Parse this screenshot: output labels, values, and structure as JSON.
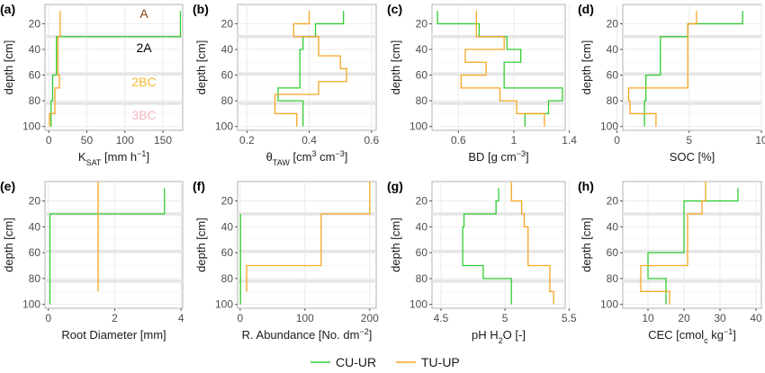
{
  "colors": {
    "cu_ur": "#33cc33",
    "tu_up": "#f5a623",
    "grid": "#ebebeb",
    "band": "#e6e6e6"
  },
  "legend": {
    "series1": "CU-UR",
    "series2": "TU-UP"
  },
  "horizons": {
    "labels": [
      "A",
      "2A",
      "2BC",
      "3BC"
    ],
    "colors": [
      "#8b4513",
      "#000000",
      "#f5b82e",
      "#f4b6c2"
    ]
  },
  "ylabel": "depth [cm]",
  "chart_data": [
    {
      "type": "line",
      "panel": "(a)",
      "xlabel": "K",
      "xlabel_sub": "SAT",
      "xlabel_post": " [mm h",
      "xlabel_sup": "−1",
      "xlabel_end": "]",
      "xlim": [
        -5,
        176
      ],
      "xticks": [
        0,
        50,
        100,
        150
      ],
      "xtick_labels": [
        "0",
        "50",
        "100",
        "150"
      ],
      "ylim": [
        5,
        103
      ],
      "yticks": [
        20,
        40,
        60,
        80,
        100
      ],
      "series": [
        {
          "name": "CU-UR",
          "steps": [
            [
              10,
              30,
              173
            ],
            [
              30,
              60,
              10
            ],
            [
              60,
              80,
              5
            ],
            [
              80,
              100,
              3
            ]
          ]
        },
        {
          "name": "TU-UP",
          "steps": [
            [
              10,
              30,
              15
            ],
            [
              30,
              60,
              12
            ],
            [
              60,
              70,
              14
            ],
            [
              70,
              90,
              8
            ],
            [
              90,
              100,
              1
            ]
          ]
        }
      ]
    },
    {
      "type": "line",
      "panel": "(b)",
      "xlabel": "θ",
      "xlabel_sub": "TAW",
      "xlabel_post": " [cm",
      "xlabel_sup": "3",
      "xlabel_post2": " cm",
      "xlabel_sup2": "−3",
      "xlabel_end": "]",
      "xlim": [
        0.17,
        0.615
      ],
      "xticks": [
        0.2,
        0.4,
        0.6
      ],
      "xtick_labels": [
        "0.2",
        "0.4",
        "0.6"
      ],
      "ylim": [
        5,
        103
      ],
      "yticks": [
        20,
        40,
        60,
        80,
        100
      ],
      "series": [
        {
          "name": "CU-UR",
          "steps": [
            [
              10,
              20,
              0.51
            ],
            [
              20,
              30,
              0.42
            ],
            [
              30,
              40,
              0.38
            ],
            [
              40,
              70,
              0.37
            ],
            [
              70,
              80,
              0.3
            ],
            [
              80,
              90,
              0.38
            ],
            [
              90,
              100,
              0.38
            ]
          ]
        },
        {
          "name": "TU-UP",
          "steps": [
            [
              10,
              20,
              0.4
            ],
            [
              20,
              30,
              0.35
            ],
            [
              30,
              45,
              0.43
            ],
            [
              45,
              55,
              0.5
            ],
            [
              55,
              65,
              0.52
            ],
            [
              65,
              75,
              0.43
            ],
            [
              75,
              90,
              0.29
            ],
            [
              90,
              100,
              0.36
            ]
          ]
        }
      ]
    },
    {
      "type": "line",
      "panel": "(c)",
      "xlabel": "BD [g cm",
      "xlabel_sup": "−3",
      "xlabel_end": "]",
      "xlim": [
        0.41,
        1.37
      ],
      "xticks": [
        0.6,
        1.0,
        1.4
      ],
      "xtick_labels": [
        "0.6",
        "1",
        "1.4"
      ],
      "ylim": [
        5,
        103
      ],
      "yticks": [
        20,
        40,
        60,
        80,
        100
      ],
      "series": [
        {
          "name": "CU-UR",
          "steps": [
            [
              10,
              20,
              0.45
            ],
            [
              20,
              30,
              0.75
            ],
            [
              30,
              40,
              0.95
            ],
            [
              40,
              50,
              1.05
            ],
            [
              50,
              70,
              0.93
            ],
            [
              70,
              80,
              1.35
            ],
            [
              80,
              90,
              1.25
            ],
            [
              90,
              100,
              1.08
            ]
          ]
        },
        {
          "name": "TU-UP",
          "steps": [
            [
              10,
              30,
              0.73
            ],
            [
              30,
              40,
              0.93
            ],
            [
              40,
              50,
              0.65
            ],
            [
              50,
              60,
              0.8
            ],
            [
              60,
              70,
              0.62
            ],
            [
              70,
              80,
              0.9
            ],
            [
              80,
              90,
              1.02
            ],
            [
              90,
              100,
              1.22
            ]
          ]
        }
      ]
    },
    {
      "type": "line",
      "panel": "(d)",
      "xlabel": "SOC [%]",
      "xlim": [
        0.4,
        10.0
      ],
      "xticks": [
        0,
        5,
        10
      ],
      "xtick_labels": [
        "0",
        "5",
        "10"
      ],
      "ylim": [
        5,
        103
      ],
      "yticks": [
        20,
        40,
        60,
        80,
        100
      ],
      "series": [
        {
          "name": "CU-UR",
          "steps": [
            [
              10,
              20,
              8.7
            ],
            [
              20,
              30,
              4.9
            ],
            [
              30,
              60,
              3.0
            ],
            [
              60,
              80,
              2.0
            ],
            [
              80,
              100,
              1.9
            ]
          ]
        },
        {
          "name": "TU-UP",
          "steps": [
            [
              10,
              20,
              5.5
            ],
            [
              20,
              70,
              4.9
            ],
            [
              70,
              80,
              0.8
            ],
            [
              80,
              90,
              0.9
            ],
            [
              90,
              100,
              2.7
            ]
          ]
        }
      ]
    },
    {
      "type": "line",
      "panel": "(e)",
      "xlabel": "Root Diameter [mm]",
      "xlim": [
        -0.1,
        4.05
      ],
      "xticks": [
        0,
        2,
        4
      ],
      "xtick_labels": [
        "0",
        "2",
        "4"
      ],
      "ylim": [
        5,
        103
      ],
      "yticks": [
        20,
        40,
        60,
        80,
        100
      ],
      "series": [
        {
          "name": "CU-UR",
          "steps": [
            [
              10,
              30,
              3.5
            ],
            [
              30,
              100,
              0.05
            ]
          ]
        },
        {
          "name": "TU-UP",
          "steps": [
            [
              5,
              90,
              1.5
            ]
          ]
        }
      ]
    },
    {
      "type": "line",
      "panel": "(f)",
      "xlabel": "R. Abundance [No. dm",
      "xlabel_sup": "−2",
      "xlabel_end": "]",
      "xlim": [
        -4,
        210
      ],
      "xticks": [
        0,
        100,
        200
      ],
      "xtick_labels": [
        "0",
        "100",
        "200"
      ],
      "ylim": [
        5,
        103
      ],
      "yticks": [
        20,
        40,
        60,
        80,
        100
      ],
      "series": [
        {
          "name": "CU-UR",
          "steps": [
            [
              30,
              100,
              0.5
            ]
          ]
        },
        {
          "name": "TU-UP",
          "steps": [
            [
              5,
              30,
              200
            ],
            [
              30,
              70,
              125
            ],
            [
              70,
              90,
              10
            ]
          ]
        }
      ]
    },
    {
      "type": "line",
      "panel": "(g)",
      "xlabel": "pH H",
      "xlabel_sub": "2",
      "xlabel_post": "O [-]",
      "xlim": [
        4.43,
        5.47
      ],
      "xticks": [
        4.5,
        5.0,
        5.5
      ],
      "xtick_labels": [
        "4.5",
        "5",
        "5.5"
      ],
      "ylim": [
        5,
        103
      ],
      "yticks": [
        20,
        40,
        60,
        80,
        100
      ],
      "series": [
        {
          "name": "CU-UR",
          "steps": [
            [
              10,
              20,
              4.95
            ],
            [
              20,
              30,
              4.93
            ],
            [
              30,
              40,
              4.68
            ],
            [
              40,
              70,
              4.67
            ],
            [
              70,
              80,
              4.83
            ],
            [
              80,
              100,
              5.05
            ]
          ]
        },
        {
          "name": "TU-UP",
          "steps": [
            [
              5,
              20,
              5.05
            ],
            [
              20,
              30,
              5.13
            ],
            [
              30,
              40,
              5.15
            ],
            [
              40,
              70,
              5.18
            ],
            [
              70,
              90,
              5.35
            ],
            [
              90,
              100,
              5.38
            ]
          ]
        }
      ]
    },
    {
      "type": "line",
      "panel": "(h)",
      "xlabel": "CEC [cmol",
      "xlabel_sub": "c",
      "xlabel_post": " kg",
      "xlabel_sup": "−1",
      "xlabel_end": "]",
      "xlim": [
        3.0,
        41.5
      ],
      "xticks": [
        10,
        20,
        30,
        40
      ],
      "xtick_labels": [
        "10",
        "20",
        "30",
        "40"
      ],
      "ylim": [
        5,
        103
      ],
      "yticks": [
        20,
        40,
        60,
        80,
        100
      ],
      "series": [
        {
          "name": "CU-UR",
          "steps": [
            [
              10,
              20,
              35
            ],
            [
              20,
              60,
              20
            ],
            [
              60,
              80,
              10
            ],
            [
              80,
              100,
              15
            ]
          ]
        },
        {
          "name": "TU-UP",
          "steps": [
            [
              5,
              20,
              26
            ],
            [
              20,
              30,
              25
            ],
            [
              30,
              70,
              21
            ],
            [
              70,
              90,
              8
            ],
            [
              90,
              100,
              16
            ]
          ]
        }
      ]
    }
  ]
}
